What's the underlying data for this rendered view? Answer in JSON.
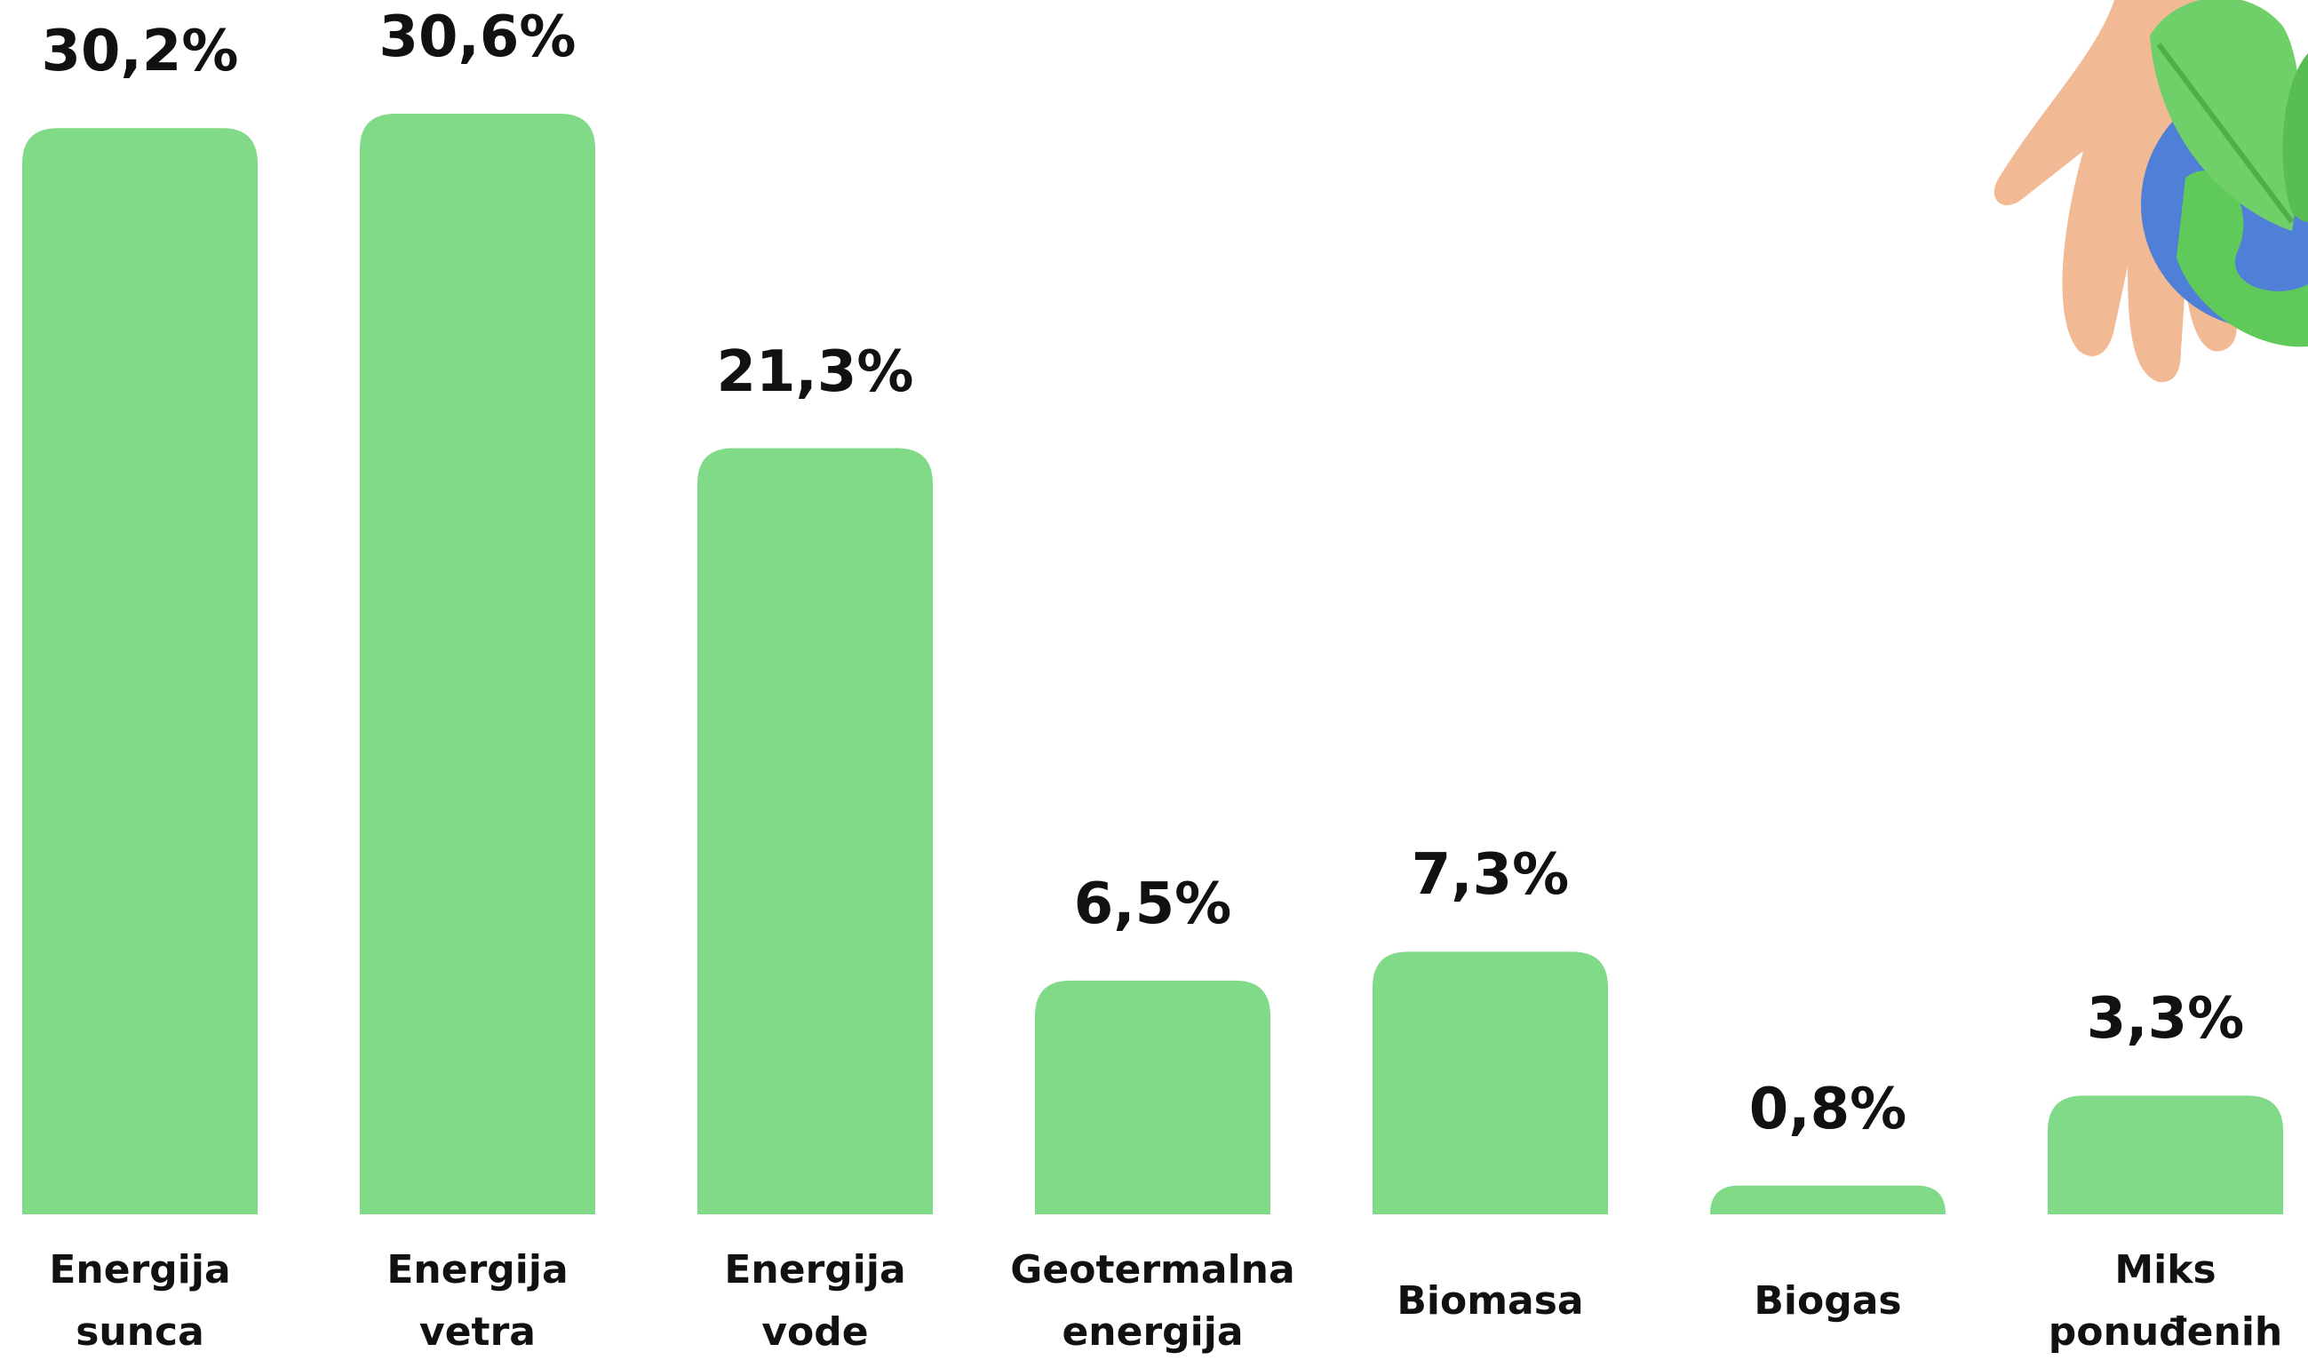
{
  "chart_data": {
    "type": "bar",
    "categories": [
      "Energija sunca",
      "Energija vetra",
      "Energija vode",
      "Geotermalna energija",
      "Biomasa",
      "Biogas",
      "Miks ponuđenih"
    ],
    "values": [
      30.2,
      30.6,
      21.3,
      6.5,
      7.3,
      0.8,
      3.3
    ],
    "value_labels": [
      "30,2%",
      "30,6%",
      "21,3%",
      "6,5%",
      "7,3%",
      "0,8%",
      "3,3%"
    ],
    "color": "#80da87"
  }
}
